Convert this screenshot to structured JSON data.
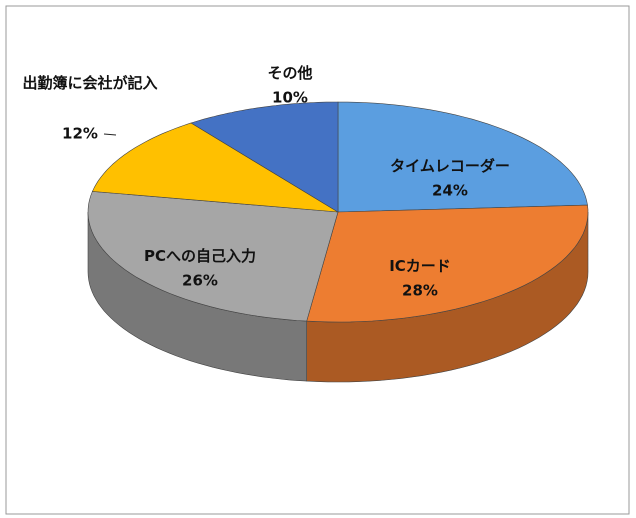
{
  "chart_data": {
    "type": "pie3d",
    "categories": [
      "タイムレコーダー",
      "ICカード",
      "PCへの自己入力",
      "出勤簿に会社が記入",
      "その他"
    ],
    "values": [
      24,
      28,
      26,
      12,
      10
    ],
    "value_labels": [
      "24%",
      "28%",
      "26%",
      "12%",
      "10%"
    ],
    "colors": [
      "#5b9ee0",
      "#ed7d31",
      "#a6a6a6",
      "#ffc000",
      "#4472c4"
    ]
  }
}
